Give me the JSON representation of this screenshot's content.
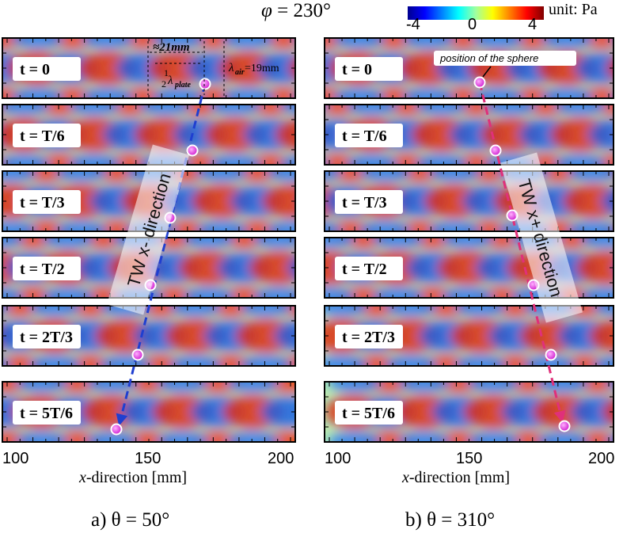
{
  "header": {
    "phi_symbol": "φ",
    "phi_value": " = 230°",
    "colorbar_unit": "unit: Pa",
    "colorbar_ticks": [
      "-4",
      "0",
      "4"
    ]
  },
  "panel_a": {
    "time_labels": [
      "t = 0",
      "t = T/6",
      "t = T/3",
      "t = T/2",
      "t = 2T/3",
      "t = 5T/6"
    ],
    "x_ticks": [
      "100",
      "150",
      "200"
    ],
    "x_axis_label_var": "x",
    "x_axis_label_rest": "-direction [mm]",
    "caption": "a) θ = 50°",
    "tw_label": "TW x- direction",
    "annotation_21mm": "≈21mm",
    "annotation_half": "1",
    "annotation_half_den": "2",
    "annotation_lambda_plate": "λ",
    "annotation_plate_sub": "plate",
    "annotation_lambda_air": "λ",
    "annotation_air_sub": "air",
    "annotation_air_value": "=19mm"
  },
  "panel_b": {
    "time_labels": [
      "t = 0",
      "t = T/6",
      "t = T/3",
      "t = T/2",
      "t = 2T/3",
      "t = 5T/6"
    ],
    "x_ticks": [
      "100",
      "150",
      "200"
    ],
    "x_axis_label_var": "x",
    "x_axis_label_rest": "-direction [mm]",
    "caption": "b) θ = 310°",
    "tw_label": "TW x+ direction",
    "sphere_note": "position of the sphere"
  },
  "colors": {
    "arrow_a": "#1f3fd0",
    "arrow_b": "#e0307a",
    "sphere": "#e040e0"
  }
}
